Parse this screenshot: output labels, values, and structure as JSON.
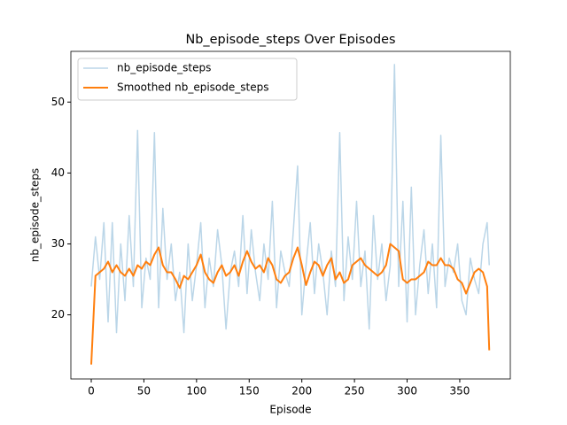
{
  "chart_data": {
    "type": "line",
    "title": "Nb_episode_steps Over Episodes",
    "x_label": "Episode",
    "y_label": "nb_episode_steps",
    "x": [
      0,
      4,
      8,
      12,
      16,
      20,
      24,
      28,
      32,
      36,
      40,
      44,
      48,
      52,
      56,
      60,
      64,
      68,
      72,
      76,
      80,
      84,
      88,
      92,
      96,
      100,
      104,
      108,
      112,
      116,
      120,
      124,
      128,
      132,
      136,
      140,
      144,
      148,
      152,
      156,
      160,
      164,
      168,
      172,
      176,
      180,
      184,
      188,
      192,
      196,
      200,
      204,
      208,
      212,
      216,
      220,
      224,
      228,
      232,
      236,
      240,
      244,
      248,
      252,
      256,
      260,
      264,
      268,
      272,
      276,
      280,
      284,
      288,
      292,
      296,
      300,
      304,
      308,
      312,
      316,
      320,
      324,
      328,
      332,
      336,
      340,
      344,
      348,
      352,
      356,
      360,
      364,
      368,
      372,
      376,
      378
    ],
    "series": [
      {
        "name": "nb_episode_steps",
        "color": "#1f77b4",
        "alpha": 0.3,
        "width": 1.5,
        "values": [
          24,
          31,
          25,
          33,
          19,
          33,
          17.5,
          30,
          22,
          34,
          24,
          46,
          21,
          28,
          25,
          45.7,
          21,
          35,
          25,
          30,
          22,
          26,
          17.5,
          30,
          22,
          27,
          33,
          21,
          28,
          24,
          32,
          27,
          18,
          26,
          29,
          24,
          34,
          23,
          32,
          26,
          22,
          30,
          25,
          36,
          21,
          29,
          26,
          24,
          32,
          41,
          20,
          27,
          33,
          23,
          30,
          26,
          20,
          29,
          24,
          45.7,
          22,
          31,
          25,
          36,
          24,
          29,
          18,
          34,
          25,
          30,
          22,
          27,
          55.3,
          24,
          36,
          19,
          38,
          20,
          27,
          32,
          23,
          30,
          21,
          45.3,
          24,
          28,
          26,
          30,
          22,
          20,
          28,
          25,
          23,
          30,
          33,
          27
        ]
      },
      {
        "name": "Smoothed nb_episode_steps",
        "color": "#ff7f0e",
        "alpha": 1,
        "width": 2,
        "values": [
          13,
          25.5,
          26,
          26.5,
          27.5,
          26,
          27,
          26,
          25.5,
          26.5,
          25.5,
          27,
          26.5,
          27.5,
          27,
          28.5,
          29.5,
          27,
          26,
          26,
          25,
          23.8,
          25.5,
          25,
          26,
          27,
          28.5,
          26,
          25,
          24.5,
          26,
          27,
          25.5,
          26,
          27,
          25.5,
          27.5,
          29,
          27.5,
          26.5,
          27,
          26,
          28,
          27,
          25,
          24.5,
          25.5,
          26,
          28,
          29.5,
          27,
          24.2,
          26,
          27.5,
          27,
          25.5,
          27,
          28,
          25,
          26,
          24.5,
          25,
          27,
          27.5,
          28,
          27,
          26.5,
          26,
          25.5,
          26,
          27,
          30,
          29.5,
          29,
          25,
          24.5,
          25,
          25,
          25.5,
          26,
          27.5,
          27,
          27,
          28,
          27,
          27,
          26.5,
          25,
          24.5,
          23,
          24.5,
          26,
          26.5,
          26,
          24,
          15
        ]
      }
    ],
    "xlim": [
      -19.35,
      398
    ],
    "ylim": [
      10.96,
      57.15
    ],
    "xticks": [
      0,
      50,
      100,
      150,
      200,
      250,
      300,
      350
    ],
    "yticks": [
      20,
      30,
      40,
      50
    ],
    "legend": "upper left"
  }
}
